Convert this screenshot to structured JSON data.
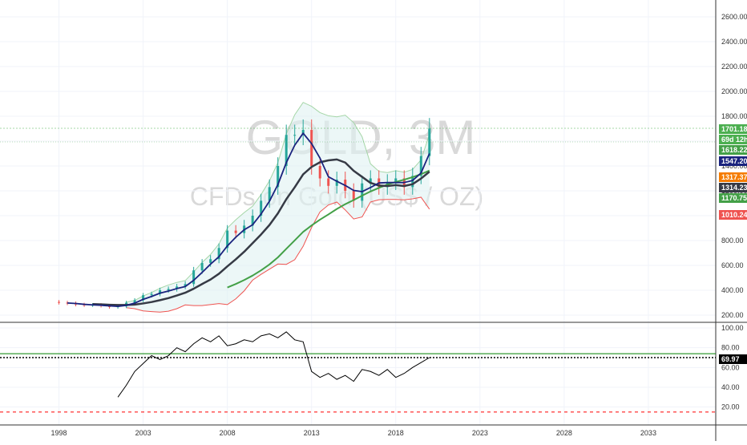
{
  "chart_data": [
    {
      "type": "candlestick",
      "watermark": {
        "symbol": "GOLD, 3M",
        "description": "CFDs on Gold (US$ / OZ)"
      },
      "ylim": [
        100,
        2700
      ],
      "y_ticks": [
        "200.00",
        "400.00",
        "600.00",
        "800.00",
        "1000.00",
        "1200.00",
        "1400.00",
        "1600.00",
        "1800.00",
        "2000.00",
        "2200.00",
        "2400.00",
        "2600.00"
      ],
      "x_ticks": [
        "1998",
        "2003",
        "2008",
        "2013",
        "2018",
        "2023",
        "2028",
        "2033"
      ],
      "xlim": [
        1994.5,
        2037
      ],
      "price_series": {
        "x": [
          1998.0,
          1998.5,
          1999.0,
          1999.5,
          2000.0,
          2000.5,
          2001.0,
          2001.5,
          2002.0,
          2002.5,
          2003.0,
          2003.5,
          2004.0,
          2004.5,
          2005.0,
          2005.5,
          2006.0,
          2006.5,
          2007.0,
          2007.5,
          2008.0,
          2008.5,
          2009.0,
          2009.5,
          2010.0,
          2010.5,
          2011.0,
          2011.5,
          2012.0,
          2012.5,
          2013.0,
          2013.5,
          2014.0,
          2014.5,
          2015.0,
          2015.5,
          2016.0,
          2016.5,
          2017.0,
          2017.5,
          2018.0,
          2018.5,
          2019.0,
          2019.5,
          2020.0
        ],
        "close": [
          300,
          295,
          285,
          280,
          282,
          275,
          265,
          270,
          300,
          320,
          360,
          370,
          400,
          410,
          430,
          450,
          560,
          620,
          650,
          740,
          880,
          860,
          920,
          1000,
          1120,
          1230,
          1400,
          1650,
          1650,
          1690,
          1400,
          1300,
          1240,
          1290,
          1200,
          1120,
          1260,
          1300,
          1230,
          1270,
          1300,
          1230,
          1320,
          1480,
          1701
        ]
      },
      "indicators": [
        {
          "label": "1547.20",
          "color": "#1a237e"
        },
        {
          "label": "1314.23",
          "color": "#363a45"
        },
        {
          "label": "1170.75",
          "color": "#43a047"
        },
        {
          "label": "1618.22",
          "color": "#a5d6a7"
        },
        {
          "label": "1010.24",
          "color": "#ef5350"
        }
      ],
      "last_price": "1701.18",
      "countdown": "69d 12h",
      "level_label": "1317.37"
    },
    {
      "type": "line",
      "ylim": [
        0,
        105
      ],
      "y_ticks": [
        "20.00",
        "40.00",
        "60.00",
        "80.00",
        "100.00"
      ],
      "x": [
        2001.5,
        2002.0,
        2002.5,
        2003.0,
        2003.5,
        2004.0,
        2004.5,
        2005.0,
        2005.5,
        2006.0,
        2006.5,
        2007.0,
        2007.5,
        2008.0,
        2008.5,
        2009.0,
        2009.5,
        2010.0,
        2010.5,
        2011.0,
        2011.5,
        2012.0,
        2012.5,
        2013.0,
        2013.5,
        2014.0,
        2014.5,
        2015.0,
        2015.5,
        2016.0,
        2016.5,
        2017.0,
        2017.5,
        2018.0,
        2018.5,
        2019.0,
        2019.5,
        2020.0
      ],
      "values": [
        30,
        42,
        56,
        64,
        72,
        68,
        72,
        80,
        76,
        84,
        90,
        86,
        92,
        82,
        84,
        88,
        86,
        92,
        94,
        90,
        96,
        88,
        86,
        56,
        50,
        54,
        48,
        52,
        46,
        58,
        56,
        52,
        58,
        50,
        54,
        60,
        65,
        70
      ],
      "last_value": "69.97",
      "upper_level": 74,
      "lower_level": 15
    }
  ],
  "colors": {
    "up": "#26a69a",
    "down": "#ef5350",
    "last_price_badge": "#4caf50",
    "countdown_badge": "#4caf50",
    "level_badge": "#f57c00",
    "band_fill": "#e0f2f1",
    "rsi_line": "#000000",
    "rsi_upper": "#008000",
    "rsi_lower": "#ff0000"
  }
}
